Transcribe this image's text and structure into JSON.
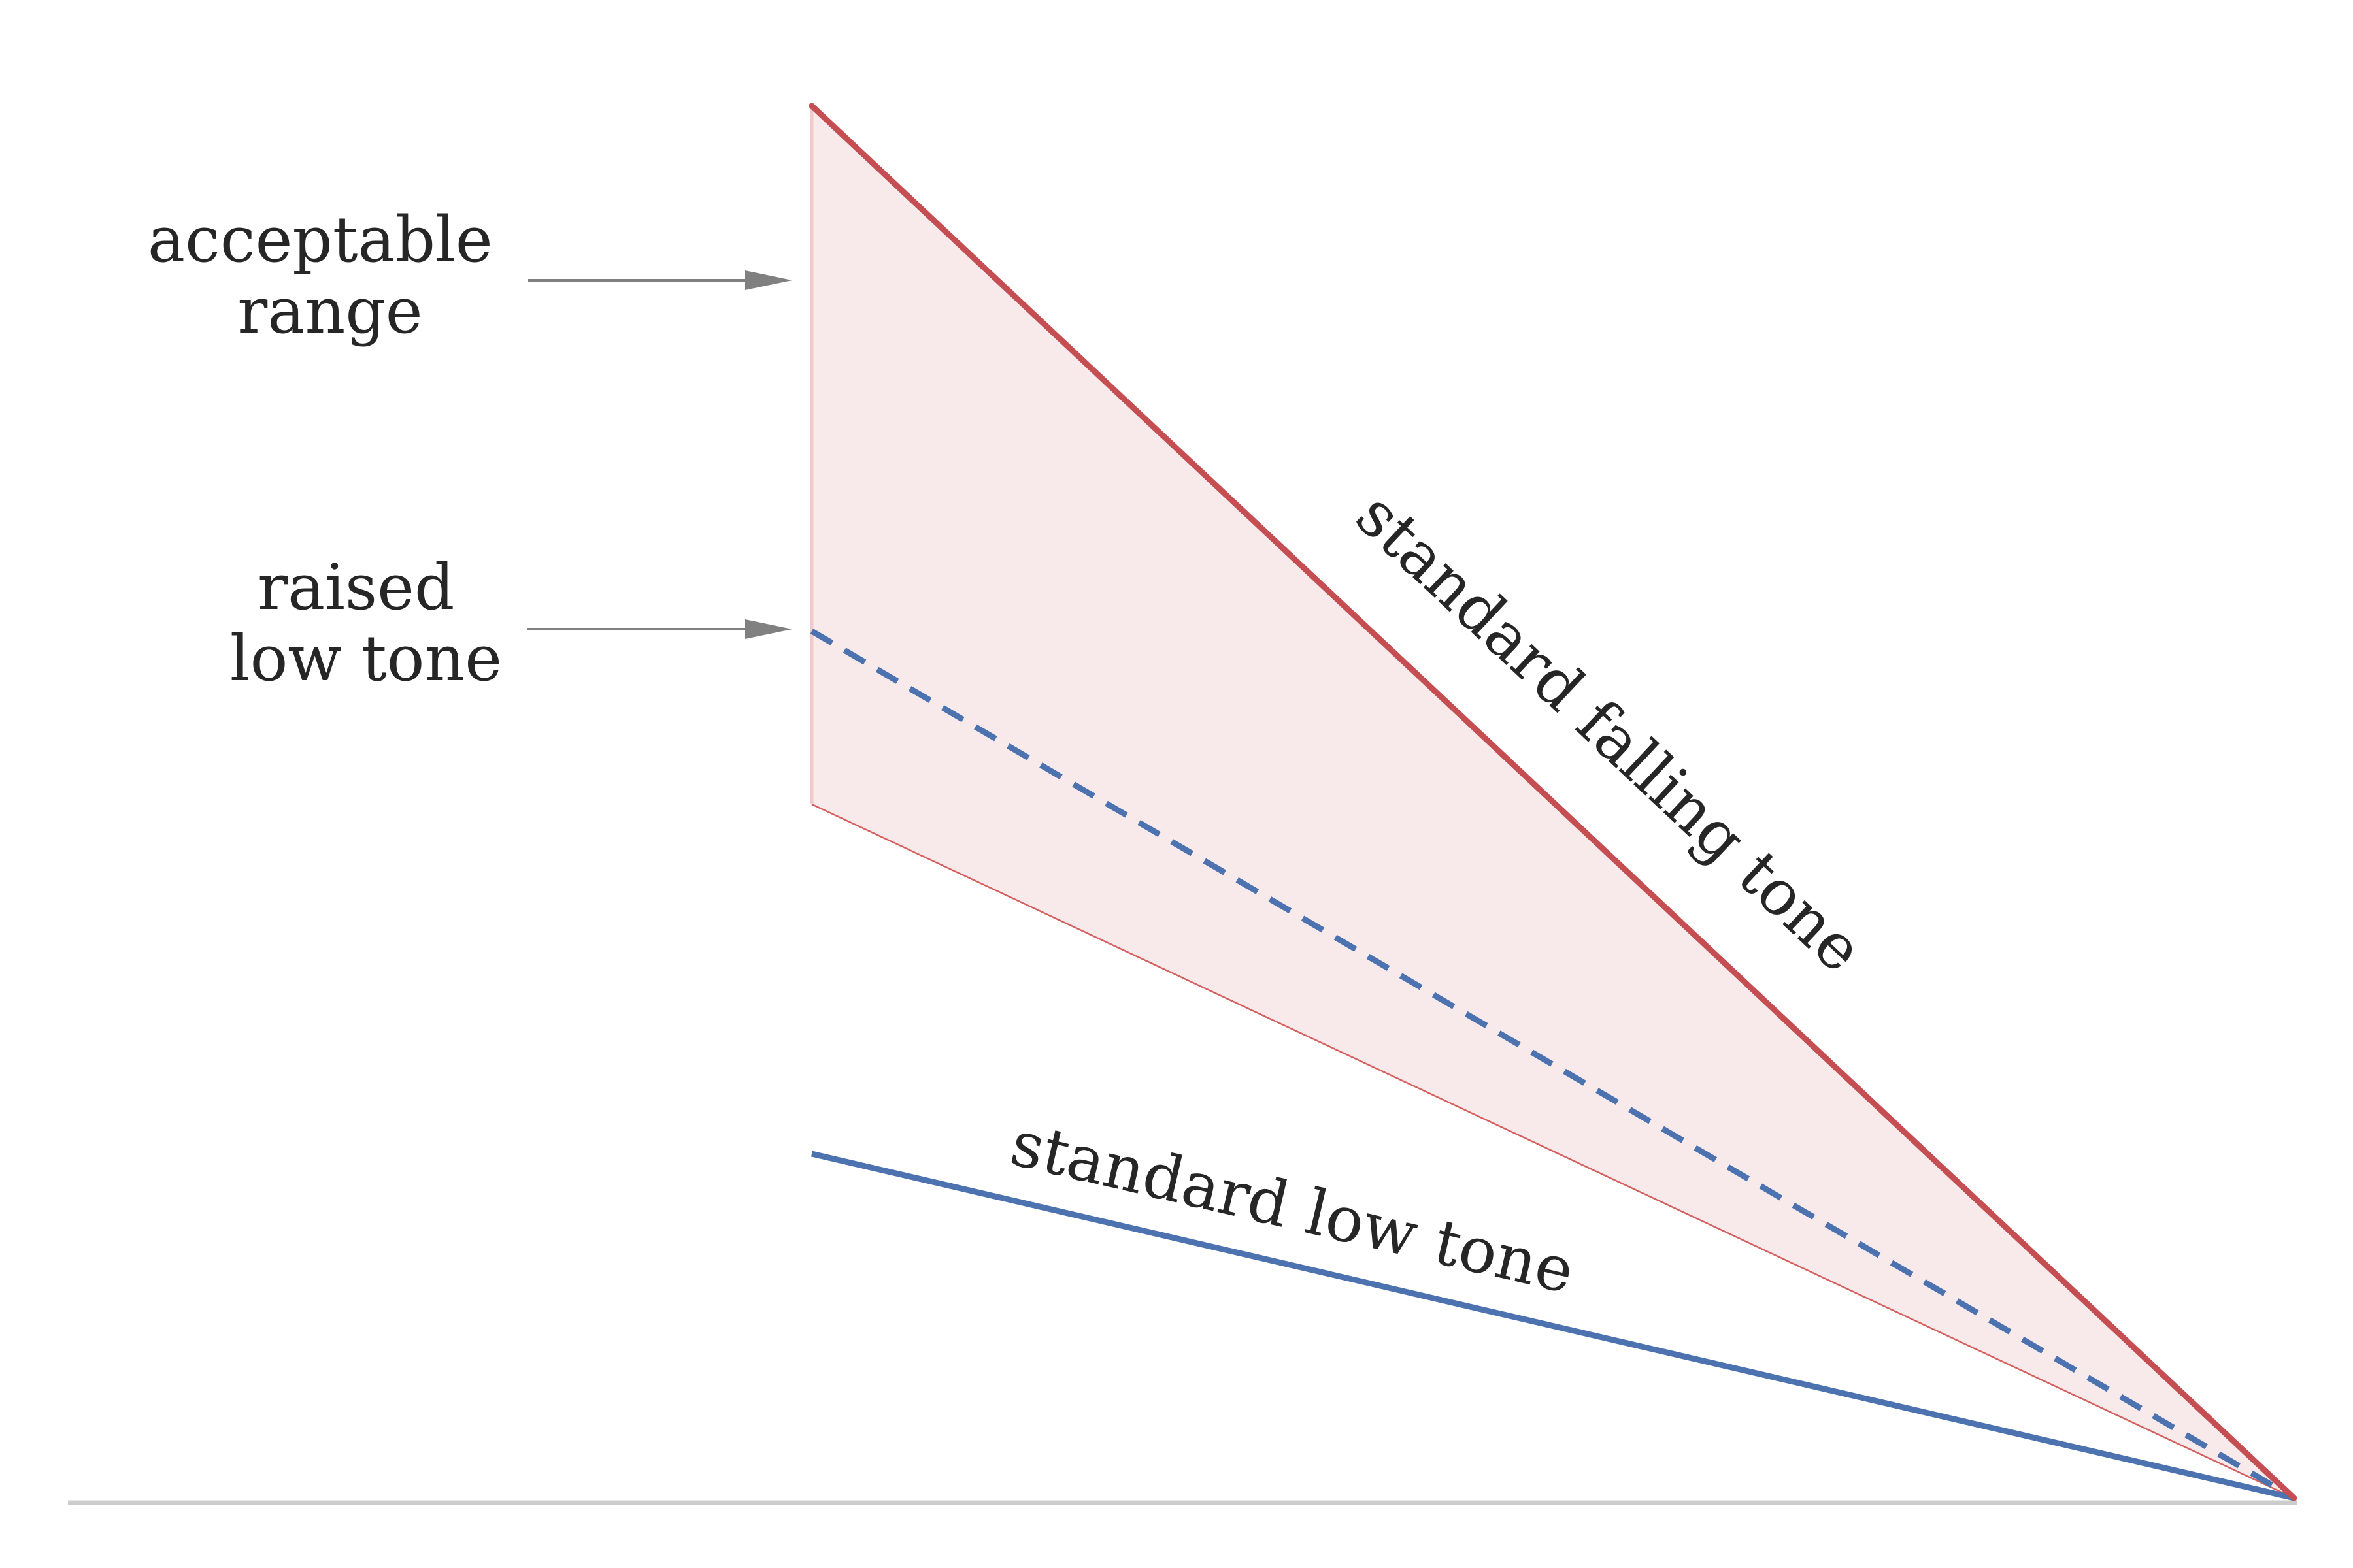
{
  "annotations": {
    "acceptable_range": [
      "acceptable",
      "range"
    ],
    "raised_low_tone": [
      "raised",
      "low tone"
    ]
  },
  "lines": {
    "falling_label": "standard falling tone",
    "low_label": "standard low tone"
  },
  "colors": {
    "falling": "#c44e52",
    "low": "#4c72b0",
    "range_fill": "#f7e6e7",
    "range_edge": "#d65f5f",
    "arrow": "#808080",
    "baseline": "#cccccc",
    "text": "#262626"
  }
}
